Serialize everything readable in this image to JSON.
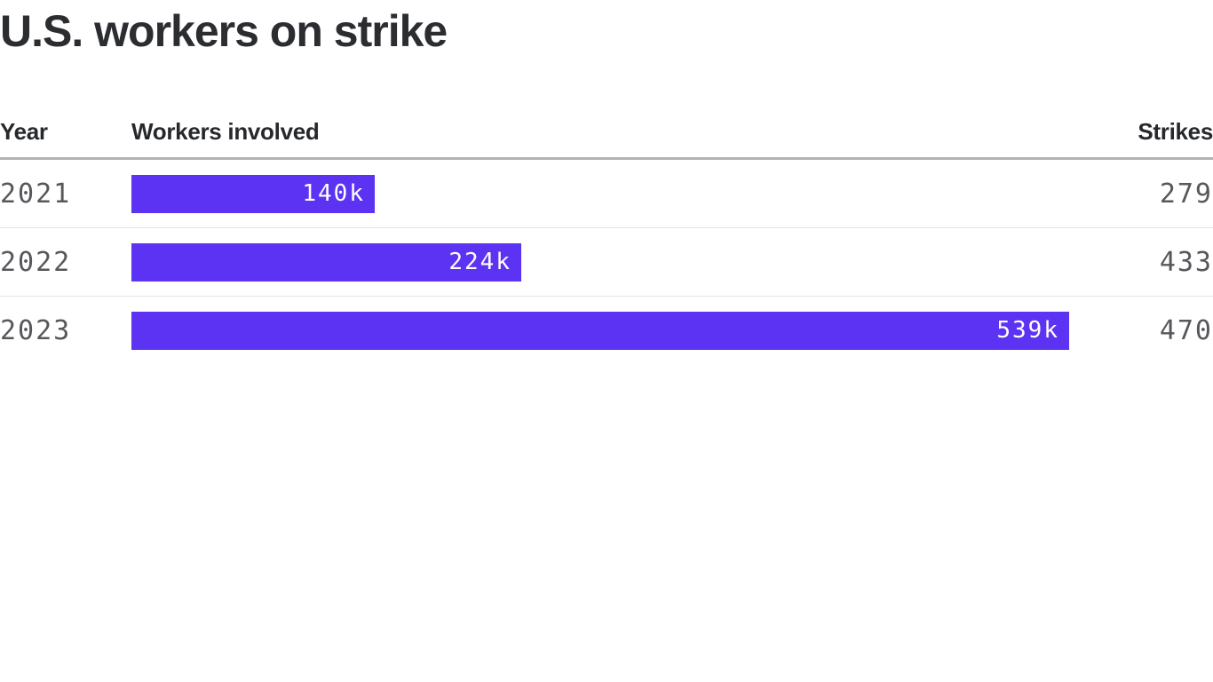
{
  "chart": {
    "title": "U.S. workers on strike"
  },
  "table": {
    "columns": [
      {
        "label": "Year"
      },
      {
        "label": "Workers involved"
      },
      {
        "label": "Strikes"
      }
    ],
    "rows": [
      {
        "year": "2021",
        "workers_label": "140k",
        "workers_thousands": 140,
        "strikes": "279"
      },
      {
        "year": "2022",
        "workers_label": "224k",
        "workers_thousands": 224,
        "strikes": "433"
      },
      {
        "year": "2023",
        "workers_label": "539k",
        "workers_thousands": 539,
        "strikes": "470"
      }
    ]
  },
  "chart_data": {
    "type": "bar",
    "orientation": "horizontal",
    "title": "U.S. workers on strike",
    "categories": [
      "2021",
      "2022",
      "2023"
    ],
    "series": [
      {
        "name": "Workers involved",
        "values": [
          140000,
          224000,
          539000
        ],
        "labels": [
          "140k",
          "224k",
          "539k"
        ]
      },
      {
        "name": "Strikes",
        "values": [
          279,
          433,
          470
        ]
      }
    ],
    "xlabel": "",
    "ylabel": "Year",
    "grid": false,
    "legend": "none",
    "bar_color": "#5C33F2"
  },
  "colors": {
    "bar": "#5C33F2",
    "bar_label_text": "#FFFFFF",
    "title_text": "#2B2D31",
    "header_text": "#26282C",
    "muted_text": "#56585C",
    "header_rule": "#B2B2B2",
    "row_rule": "#E3E3E3",
    "background": "#FFFFFF"
  }
}
